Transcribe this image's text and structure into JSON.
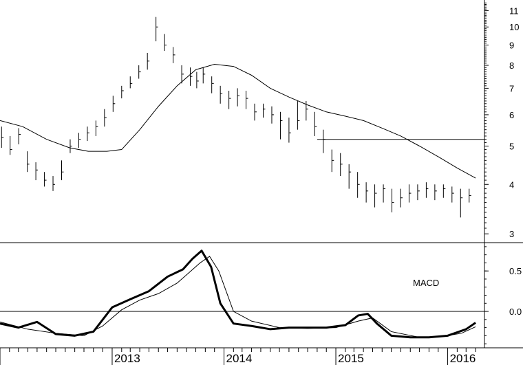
{
  "chart_data": [
    {
      "type": "bar",
      "subtype": "ohlc-price-weekly",
      "title": "",
      "xlabel": "",
      "ylabel": "",
      "y_scale": "log",
      "ylim": [
        2.85,
        11.7
      ],
      "xlim": [
        "2012-01-01",
        "2016-04-30"
      ],
      "grid": false,
      "y_ticks": [
        3,
        4,
        5,
        6,
        7,
        8,
        9,
        10,
        11
      ],
      "x_year_labels": [
        "2013",
        "2014",
        "2015",
        "2016"
      ],
      "x_year_dates": [
        "2013-01-01",
        "2014-01-01",
        "2015-01-01",
        "2016-01-01"
      ],
      "series": [
        {
          "kind": "price-bars",
          "x": [
            "2012-01-06",
            "2012-02-03",
            "2012-03-02",
            "2012-03-30",
            "2012-04-27",
            "2012-05-25",
            "2012-06-22",
            "2012-07-20",
            "2012-08-17",
            "2012-09-14",
            "2012-10-12",
            "2012-11-09",
            "2012-12-07",
            "2013-01-04",
            "2013-02-01",
            "2013-03-01",
            "2013-03-29",
            "2013-04-26",
            "2013-05-24",
            "2013-06-21",
            "2013-07-19",
            "2013-08-16",
            "2013-09-13",
            "2013-10-04",
            "2013-10-25",
            "2013-11-22",
            "2013-12-20",
            "2014-01-17",
            "2014-02-14",
            "2014-03-14",
            "2014-04-11",
            "2014-05-09",
            "2014-06-06",
            "2014-07-04",
            "2014-08-01",
            "2014-08-29",
            "2014-09-26",
            "2014-10-24",
            "2014-11-21",
            "2014-12-19",
            "2015-01-16",
            "2015-02-13",
            "2015-03-13",
            "2015-04-10",
            "2015-05-08",
            "2015-06-05",
            "2015-07-03",
            "2015-07-31",
            "2015-08-28",
            "2015-09-25",
            "2015-10-23",
            "2015-11-20",
            "2015-12-18",
            "2016-01-15",
            "2016-02-12",
            "2016-03-11"
          ],
          "close": [
            5.25,
            4.9,
            5.35,
            4.5,
            4.35,
            4.1,
            4.0,
            4.3,
            5.0,
            5.2,
            5.4,
            5.6,
            5.9,
            6.4,
            6.9,
            7.2,
            7.7,
            8.2,
            10.0,
            9.0,
            8.5,
            7.6,
            7.5,
            7.3,
            7.6,
            7.2,
            6.8,
            6.6,
            6.7,
            6.6,
            6.1,
            6.2,
            6.0,
            5.8,
            5.4,
            5.8,
            6.2,
            5.6,
            5.2,
            4.6,
            4.5,
            4.3,
            4.0,
            3.85,
            3.8,
            3.9,
            3.6,
            3.7,
            3.8,
            3.85,
            3.9,
            3.85,
            3.9,
            3.8,
            3.7,
            3.75
          ],
          "high": [
            5.6,
            5.3,
            5.55,
            4.85,
            4.55,
            4.3,
            4.2,
            4.6,
            5.2,
            5.4,
            5.6,
            5.8,
            6.2,
            6.7,
            7.1,
            7.5,
            8.0,
            8.6,
            10.6,
            9.6,
            8.9,
            8.0,
            7.9,
            7.7,
            7.9,
            7.5,
            7.1,
            6.9,
            7.0,
            6.9,
            6.4,
            6.4,
            6.3,
            6.1,
            5.9,
            6.5,
            6.5,
            6.1,
            5.5,
            4.9,
            4.8,
            4.5,
            4.3,
            4.05,
            4.0,
            4.0,
            3.9,
            3.9,
            4.0,
            4.0,
            4.05,
            4.0,
            4.0,
            3.95,
            3.9,
            3.9
          ],
          "low": [
            4.95,
            4.75,
            5.05,
            4.3,
            4.1,
            3.95,
            3.85,
            4.1,
            4.8,
            4.95,
            5.15,
            5.3,
            5.6,
            6.1,
            6.6,
            7.0,
            7.4,
            7.8,
            9.2,
            8.7,
            8.1,
            7.2,
            7.1,
            7.0,
            7.2,
            6.8,
            6.4,
            6.2,
            6.3,
            6.2,
            5.8,
            5.9,
            5.7,
            5.2,
            5.1,
            5.5,
            5.8,
            5.3,
            4.8,
            4.3,
            4.2,
            3.9,
            3.7,
            3.6,
            3.5,
            3.6,
            3.4,
            3.5,
            3.6,
            3.65,
            3.7,
            3.65,
            3.7,
            3.6,
            3.3,
            3.6
          ]
        },
        {
          "kind": "moving-average",
          "x": [
            "2012-01-01",
            "2012-03-15",
            "2012-06-01",
            "2012-08-15",
            "2012-10-15",
            "2012-12-15",
            "2013-02-01",
            "2013-04-01",
            "2013-06-01",
            "2013-08-01",
            "2013-10-01",
            "2013-12-01",
            "2014-02-01",
            "2014-04-01",
            "2014-06-01",
            "2014-08-01",
            "2014-10-01",
            "2014-12-01",
            "2015-02-01",
            "2015-04-01",
            "2015-06-01",
            "2015-08-01",
            "2015-10-01",
            "2015-12-01",
            "2016-02-01",
            "2016-04-01"
          ],
          "values": [
            5.8,
            5.6,
            5.2,
            4.95,
            4.85,
            4.85,
            4.9,
            5.5,
            6.3,
            7.1,
            7.8,
            8.05,
            7.95,
            7.55,
            7.0,
            6.65,
            6.35,
            6.1,
            5.95,
            5.8,
            5.55,
            5.3,
            5.0,
            4.7,
            4.4,
            4.15
          ]
        },
        {
          "kind": "horizontal-line",
          "y": 5.2,
          "x_start": "2014-11-01",
          "x_end": "2016-04-30"
        }
      ]
    },
    {
      "type": "line",
      "subtype": "macd-indicator",
      "label": "MACD",
      "ylim": [
        -0.45,
        0.85
      ],
      "y_ticks": [
        0.0,
        0.5
      ],
      "y_tick_labels": [
        "0.0",
        "0.5"
      ],
      "zero_line": true,
      "series": [
        {
          "kind": "macd-thick",
          "x": [
            "2012-01-01",
            "2012-03-01",
            "2012-05-01",
            "2012-07-01",
            "2012-09-01",
            "2012-11-01",
            "2013-01-01",
            "2013-03-01",
            "2013-05-01",
            "2013-07-01",
            "2013-08-20",
            "2013-09-20",
            "2013-10-20",
            "2013-11-20",
            "2013-12-20",
            "2014-02-01",
            "2014-04-01",
            "2014-06-01",
            "2014-08-01",
            "2014-10-01",
            "2014-12-01",
            "2015-02-01",
            "2015-03-15",
            "2015-04-15",
            "2015-05-15",
            "2015-07-01",
            "2015-09-01",
            "2015-11-01",
            "2016-01-01",
            "2016-03-01",
            "2016-04-01"
          ],
          "values": [
            -0.15,
            -0.2,
            -0.13,
            -0.28,
            -0.3,
            -0.25,
            0.05,
            0.15,
            0.25,
            0.43,
            0.52,
            0.65,
            0.75,
            0.55,
            0.1,
            -0.15,
            -0.18,
            -0.22,
            -0.2,
            -0.2,
            -0.2,
            -0.17,
            -0.05,
            -0.03,
            -0.15,
            -0.3,
            -0.32,
            -0.32,
            -0.3,
            -0.22,
            -0.14
          ]
        },
        {
          "kind": "macd-signal",
          "x": [
            "2012-01-01",
            "2012-04-01",
            "2012-07-01",
            "2012-10-01",
            "2012-12-01",
            "2013-02-01",
            "2013-04-01",
            "2013-06-01",
            "2013-08-01",
            "2013-09-15",
            "2013-10-15",
            "2013-11-15",
            "2013-12-15",
            "2014-02-01",
            "2014-04-01",
            "2014-07-01",
            "2014-10-01",
            "2015-01-01",
            "2015-03-15",
            "2015-05-01",
            "2015-07-01",
            "2015-10-01",
            "2015-12-15",
            "2016-02-15",
            "2016-04-01"
          ],
          "values": [
            -0.13,
            -0.22,
            -0.27,
            -0.3,
            -0.18,
            0.02,
            0.14,
            0.22,
            0.35,
            0.5,
            0.6,
            0.68,
            0.5,
            0.0,
            -0.12,
            -0.2,
            -0.21,
            -0.2,
            -0.12,
            -0.08,
            -0.25,
            -0.32,
            -0.31,
            -0.27,
            -0.19
          ]
        }
      ]
    }
  ]
}
